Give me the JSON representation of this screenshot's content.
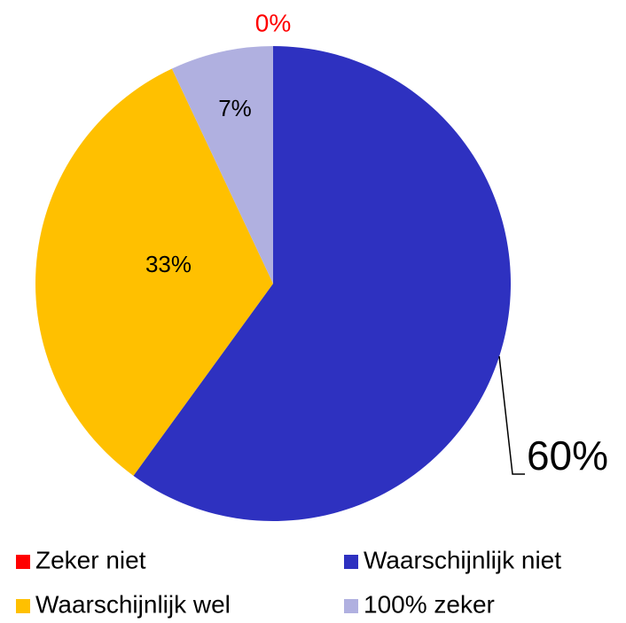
{
  "chart_data": {
    "type": "pie",
    "categories": [
      "Zeker niet",
      "Waarschijnlijk niet",
      "Waarschijnlijk wel",
      "100% zeker"
    ],
    "values": [
      0,
      60,
      33,
      7
    ],
    "value_labels": [
      "0%",
      "60%",
      "33%",
      "7%"
    ],
    "colors": [
      "#ff0000",
      "#2e31c0",
      "#ffc000",
      "#b0b0e0"
    ],
    "legend": "bottom"
  }
}
